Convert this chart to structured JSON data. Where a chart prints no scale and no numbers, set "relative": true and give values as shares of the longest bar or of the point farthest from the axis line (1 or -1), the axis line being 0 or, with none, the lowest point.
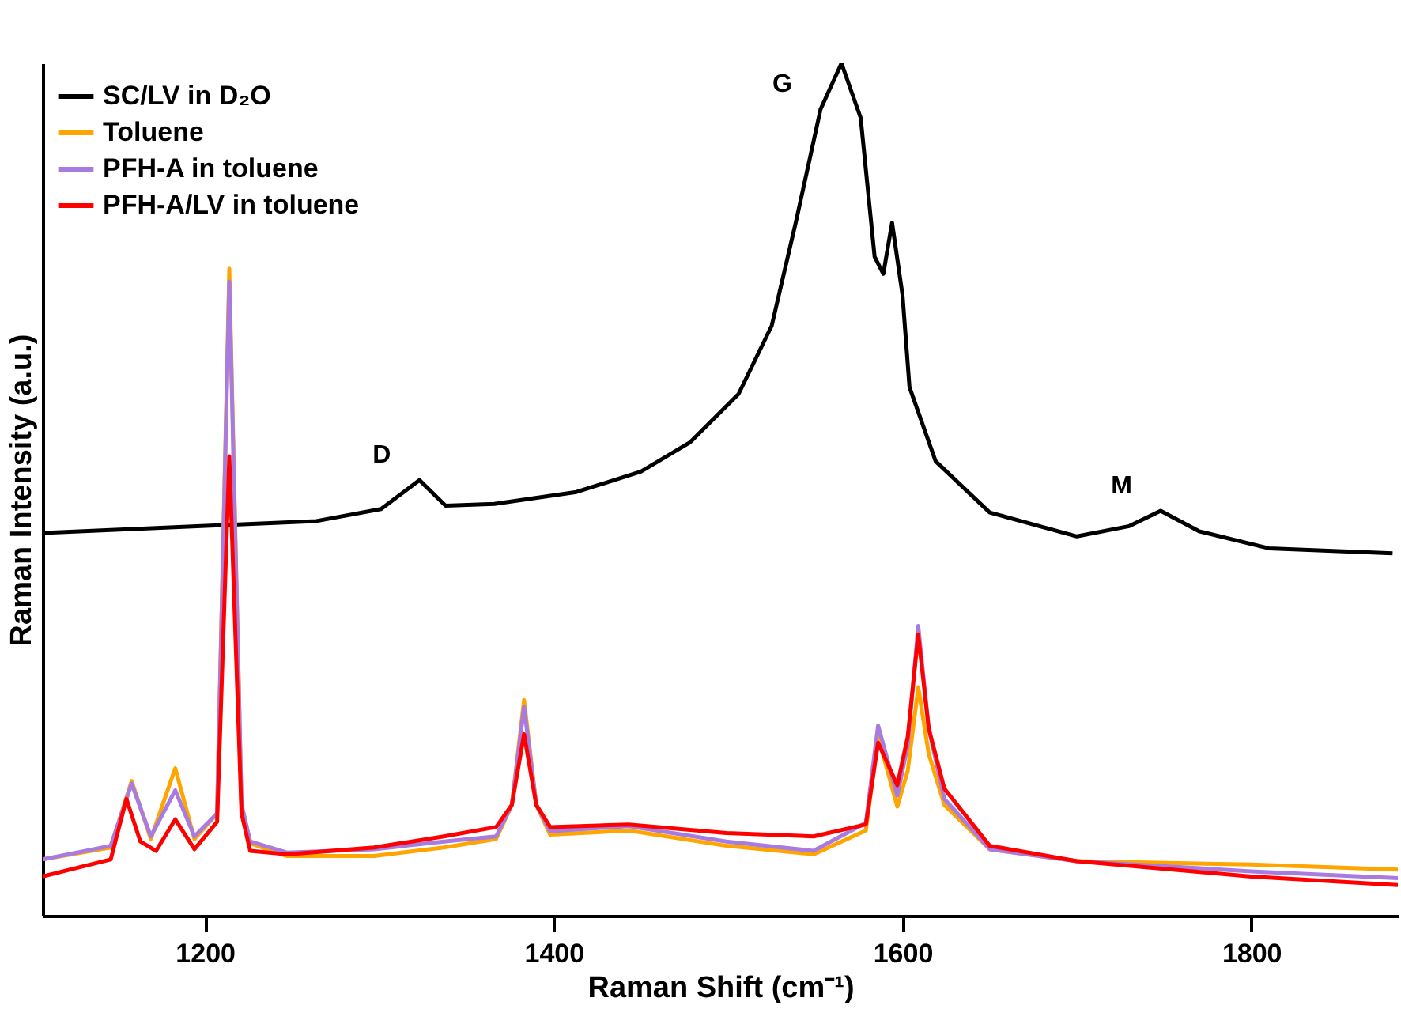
{
  "chart_data": {
    "type": "line",
    "relative": true,
    "xlabel": "Raman Shift (cm⁻¹)",
    "ylabel": "Raman Intensity (a.u.)",
    "xlim": [
      1107,
      1884
    ],
    "xticks": [
      1200,
      1400,
      1600,
      1800
    ],
    "grid": false,
    "legend": "top left",
    "marker": "none",
    "line_style": "solid",
    "series": [
      {
        "name": "SC/LV in D₂O",
        "color": "#000000",
        "x": [
          1107,
          1198,
          1264,
          1301,
          1323,
          1338,
          1366,
          1413,
          1450,
          1478,
          1506,
          1525,
          1539,
          1553,
          1565,
          1576,
          1584,
          1589,
          1594,
          1600,
          1604,
          1619,
          1650,
          1700,
          1730,
          1748,
          1770,
          1810,
          1881
        ],
        "values": [
          0.449,
          0.457,
          0.463,
          0.477,
          0.511,
          0.481,
          0.483,
          0.497,
          0.521,
          0.555,
          0.612,
          0.692,
          0.815,
          0.946,
          1.0,
          0.936,
          0.773,
          0.753,
          0.813,
          0.728,
          0.62,
          0.533,
          0.473,
          0.445,
          0.457,
          0.475,
          0.451,
          0.431,
          0.425
        ]
      },
      {
        "name": "Toluene",
        "color": "#ffa500",
        "x": [
          1107,
          1146,
          1158,
          1169,
          1183,
          1194,
          1207,
          1214,
          1221,
          1226,
          1247,
          1297,
          1337,
          1367,
          1376,
          1383,
          1390,
          1398,
          1443,
          1499,
          1549,
          1579,
          1586,
          1597,
          1603,
          1609,
          1615,
          1624,
          1650,
          1700,
          1800,
          1884
        ],
        "values": [
          0.066,
          0.08,
          0.158,
          0.09,
          0.173,
          0.09,
          0.12,
          0.759,
          0.13,
          0.085,
          0.07,
          0.07,
          0.08,
          0.09,
          0.13,
          0.253,
          0.13,
          0.095,
          0.1,
          0.082,
          0.072,
          0.1,
          0.21,
          0.128,
          0.17,
          0.268,
          0.19,
          0.13,
          0.078,
          0.064,
          0.06,
          0.054
        ]
      },
      {
        "name": "PFH-A in toluene",
        "color": "#a87be0",
        "x": [
          1107,
          1146,
          1158,
          1169,
          1183,
          1194,
          1207,
          1214,
          1221,
          1226,
          1247,
          1297,
          1337,
          1367,
          1376,
          1383,
          1390,
          1398,
          1443,
          1499,
          1549,
          1579,
          1586,
          1597,
          1603,
          1609,
          1615,
          1624,
          1650,
          1700,
          1800,
          1884
        ],
        "values": [
          0.066,
          0.082,
          0.155,
          0.093,
          0.147,
          0.093,
          0.12,
          0.744,
          0.13,
          0.087,
          0.074,
          0.078,
          0.087,
          0.093,
          0.13,
          0.245,
          0.13,
          0.099,
          0.105,
          0.087,
          0.076,
          0.109,
          0.223,
          0.141,
          0.2,
          0.34,
          0.22,
          0.137,
          0.078,
          0.064,
          0.052,
          0.044
        ]
      },
      {
        "name": "PFH-A/LV in toluene",
        "color": "#ff0000",
        "x": [
          1107,
          1146,
          1155,
          1163,
          1172,
          1183,
          1194,
          1207,
          1214,
          1221,
          1226,
          1247,
          1297,
          1337,
          1367,
          1376,
          1383,
          1390,
          1398,
          1443,
          1499,
          1549,
          1579,
          1586,
          1597,
          1603,
          1609,
          1615,
          1624,
          1650,
          1700,
          1800,
          1884
        ],
        "values": [
          0.046,
          0.066,
          0.137,
          0.087,
          0.076,
          0.113,
          0.078,
          0.11,
          0.539,
          0.12,
          0.076,
          0.072,
          0.08,
          0.093,
          0.104,
          0.13,
          0.213,
          0.13,
          0.104,
          0.107,
          0.097,
          0.093,
          0.107,
          0.203,
          0.153,
          0.21,
          0.33,
          0.22,
          0.149,
          0.082,
          0.064,
          0.046,
          0.036
        ]
      }
    ],
    "annotations": [
      {
        "text": "D",
        "x": 1323,
        "y": 0.511
      },
      {
        "text": "G",
        "x": 1553,
        "y": 0.946
      },
      {
        "text": "M",
        "x": 1748,
        "y": 0.475
      }
    ]
  }
}
